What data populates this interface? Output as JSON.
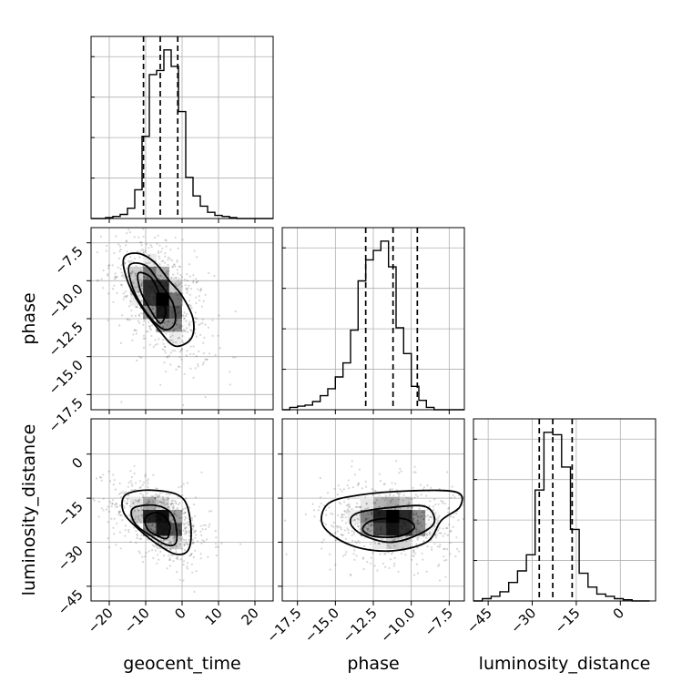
{
  "chart_data": {
    "type": "corner",
    "parameters": [
      "geocent_time",
      "phase",
      "luminosity_distance"
    ],
    "grid": true,
    "ranges": {
      "geocent_time": [
        -25,
        25
      ],
      "phase": [
        -18.5,
        -6.5
      ],
      "luminosity_distance": [
        -50,
        12
      ]
    },
    "ticks": {
      "geocent_time": {
        "values": [
          -20,
          -10,
          0,
          10,
          20
        ],
        "labels": [
          "−20",
          "−10",
          "0",
          "10",
          "20"
        ]
      },
      "phase": {
        "values": [
          -17.5,
          -15.0,
          -12.5,
          -10.0,
          -7.5
        ],
        "labels": [
          "−17.5",
          "−15.0",
          "−12.5",
          "−10.0",
          "−7.5"
        ]
      },
      "luminosity_distance": {
        "values": [
          -45,
          -30,
          -15,
          0
        ],
        "labels": [
          "−45",
          "−30",
          "−15",
          "0"
        ]
      }
    },
    "histograms": [
      {
        "parameter": "geocent_time",
        "bin_edges": [
          -25,
          -23,
          -21,
          -19,
          -17,
          -15,
          -13,
          -11,
          -9,
          -7,
          -5,
          -3,
          -1,
          1,
          3,
          5,
          7,
          9,
          11,
          13,
          15,
          17,
          19,
          21,
          23,
          25
        ],
        "counts": [
          0,
          0,
          0.5,
          1,
          2,
          5,
          14,
          40,
          70,
          72,
          82,
          74,
          52,
          20,
          11,
          6,
          3,
          1.5,
          1,
          0.5,
          0,
          0,
          0,
          0,
          0
        ],
        "quantile_lines": [
          -10.6,
          -6.0,
          -1.2
        ]
      },
      {
        "parameter": "phase",
        "bin_edges": [
          -18.5,
          -18.0,
          -17.5,
          -17.0,
          -16.5,
          -16.0,
          -15.5,
          -15.0,
          -14.5,
          -14.0,
          -13.5,
          -13.0,
          -12.5,
          -12.0,
          -11.5,
          -11.0,
          -10.5,
          -10.0,
          -9.5,
          -9.0,
          -8.5,
          -8.0,
          -7.5,
          -7.0,
          -6.5
        ],
        "counts": [
          0,
          1,
          1.5,
          2,
          3.5,
          6,
          9,
          14,
          20,
          34,
          55,
          64,
          68,
          72,
          61,
          35,
          24,
          10,
          4,
          1,
          0,
          0,
          0,
          0
        ],
        "quantile_lines": [
          -13.0,
          -11.2,
          -9.6
        ]
      },
      {
        "parameter": "luminosity_distance",
        "bin_edges": [
          -50,
          -47,
          -44,
          -41,
          -38,
          -35,
          -32,
          -29,
          -26,
          -23,
          -20,
          -17,
          -14,
          -11,
          -8,
          -5,
          -2,
          1,
          4,
          7,
          10
        ],
        "counts": [
          0,
          1,
          2,
          4,
          8,
          13,
          20,
          48,
          73,
          72,
          58,
          31,
          12,
          6,
          3,
          2,
          1,
          0.5,
          0,
          0
        ],
        "quantile_lines": [
          -27.6,
          -23.0,
          -16.4
        ]
      }
    ],
    "pairs": [
      {
        "x": "geocent_time",
        "y": "phase",
        "mean": [
          -6.0,
          -11.2
        ],
        "sd": [
          5.5,
          1.9
        ],
        "rho": -0.5,
        "contours": [
          {
            "level": 0.2,
            "points": [
              [
                -12.0,
                -9.5
              ],
              [
                -8.5,
                -9.8
              ],
              [
                -6.0,
                -11.0
              ],
              [
                -4.5,
                -12.0
              ],
              [
                -6.0,
                -12.8
              ],
              [
                -9.0,
                -11.8
              ],
              [
                -11.5,
                -10.6
              ]
            ]
          },
          {
            "level": 0.5,
            "points": [
              [
                -14.5,
                -9.0
              ],
              [
                -10.0,
                -9.0
              ],
              [
                -6.0,
                -10.2
              ],
              [
                -2.5,
                -11.5
              ],
              [
                -2.0,
                -12.8
              ],
              [
                -5.0,
                -13.2
              ],
              [
                -9.5,
                -12.2
              ],
              [
                -13.5,
                -10.5
              ]
            ]
          },
          {
            "level": 0.9,
            "points": [
              [
                -16.0,
                -8.5
              ],
              [
                -12.0,
                -8.2
              ],
              [
                -7.5,
                -8.8
              ],
              [
                -3.5,
                -10.0
              ],
              [
                0.0,
                -11.0
              ],
              [
                3.0,
                -12.5
              ],
              [
                2.5,
                -13.8
              ],
              [
                -2.0,
                -14.3
              ],
              [
                -6.5,
                -13.2
              ],
              [
                -11.5,
                -11.6
              ],
              [
                -15.0,
                -10.0
              ]
            ]
          }
        ]
      },
      {
        "x": "geocent_time",
        "y": "luminosity_distance",
        "mean": [
          -6.0,
          -23.0
        ],
        "sd": [
          5.5,
          5.8
        ],
        "rho": -0.45,
        "contours": [
          {
            "level": 0.2,
            "points": [
              [
                -10.0,
                -21.5
              ],
              [
                -6.5,
                -20.0
              ],
              [
                -3.5,
                -23.5
              ],
              [
                -4.0,
                -28.5
              ],
              [
                -6.5,
                -28.0
              ],
              [
                -9.5,
                -25.5
              ]
            ]
          },
          {
            "level": 0.5,
            "points": [
              [
                -13.5,
                -18.5
              ],
              [
                -7.0,
                -17.5
              ],
              [
                -2.5,
                -21.0
              ],
              [
                -1.5,
                -29.5
              ],
              [
                -4.0,
                -31.0
              ],
              [
                -9.0,
                -27.5
              ],
              [
                -13.0,
                -23.5
              ]
            ]
          },
          {
            "level": 0.9,
            "points": [
              [
                -16.0,
                -14.5
              ],
              [
                -12.0,
                -12.5
              ],
              [
                -6.0,
                -12.5
              ],
              [
                -1.0,
                -14.0
              ],
              [
                1.5,
                -18.0
              ],
              [
                2.5,
                -27.0
              ],
              [
                1.5,
                -33.0
              ],
              [
                -2.0,
                -34.0
              ],
              [
                -7.0,
                -30.5
              ],
              [
                -12.0,
                -25.5
              ],
              [
                -16.0,
                -20.0
              ]
            ]
          }
        ]
      },
      {
        "x": "phase",
        "y": "luminosity_distance",
        "mean": [
          -11.2,
          -23.0
        ],
        "sd": [
          1.9,
          5.8
        ],
        "rho": -0.1,
        "contours": [
          {
            "level": 0.2,
            "points": [
              [
                -12.5,
                -22.5
              ],
              [
                -10.5,
                -22.0
              ],
              [
                -9.8,
                -25.0
              ],
              [
                -10.8,
                -28.0
              ],
              [
                -12.5,
                -28.0
              ],
              [
                -13.2,
                -25.5
              ]
            ]
          },
          {
            "level": 0.5,
            "points": [
              [
                -13.5,
                -20.0
              ],
              [
                -11.0,
                -18.0
              ],
              [
                -9.0,
                -18.0
              ],
              [
                -8.5,
                -23.5
              ],
              [
                -9.8,
                -28.0
              ],
              [
                -11.5,
                -30.0
              ],
              [
                -13.2,
                -27.5
              ],
              [
                -14.0,
                -23.5
              ]
            ]
          },
          {
            "level": 0.9,
            "points": [
              [
                -15.5,
                -17.0
              ],
              [
                -13.5,
                -14.0
              ],
              [
                -10.0,
                -12.5
              ],
              [
                -7.0,
                -13.0
              ],
              [
                -6.8,
                -18.0
              ],
              [
                -8.0,
                -22.5
              ],
              [
                -9.0,
                -30.0
              ],
              [
                -11.5,
                -33.0
              ],
              [
                -14.0,
                -31.0
              ],
              [
                -15.8,
                -24.5
              ]
            ]
          }
        ]
      }
    ],
    "colors": {
      "line": "#000000",
      "grid": "#b0b0b0",
      "points": "#000000",
      "background": "#ffffff"
    }
  }
}
